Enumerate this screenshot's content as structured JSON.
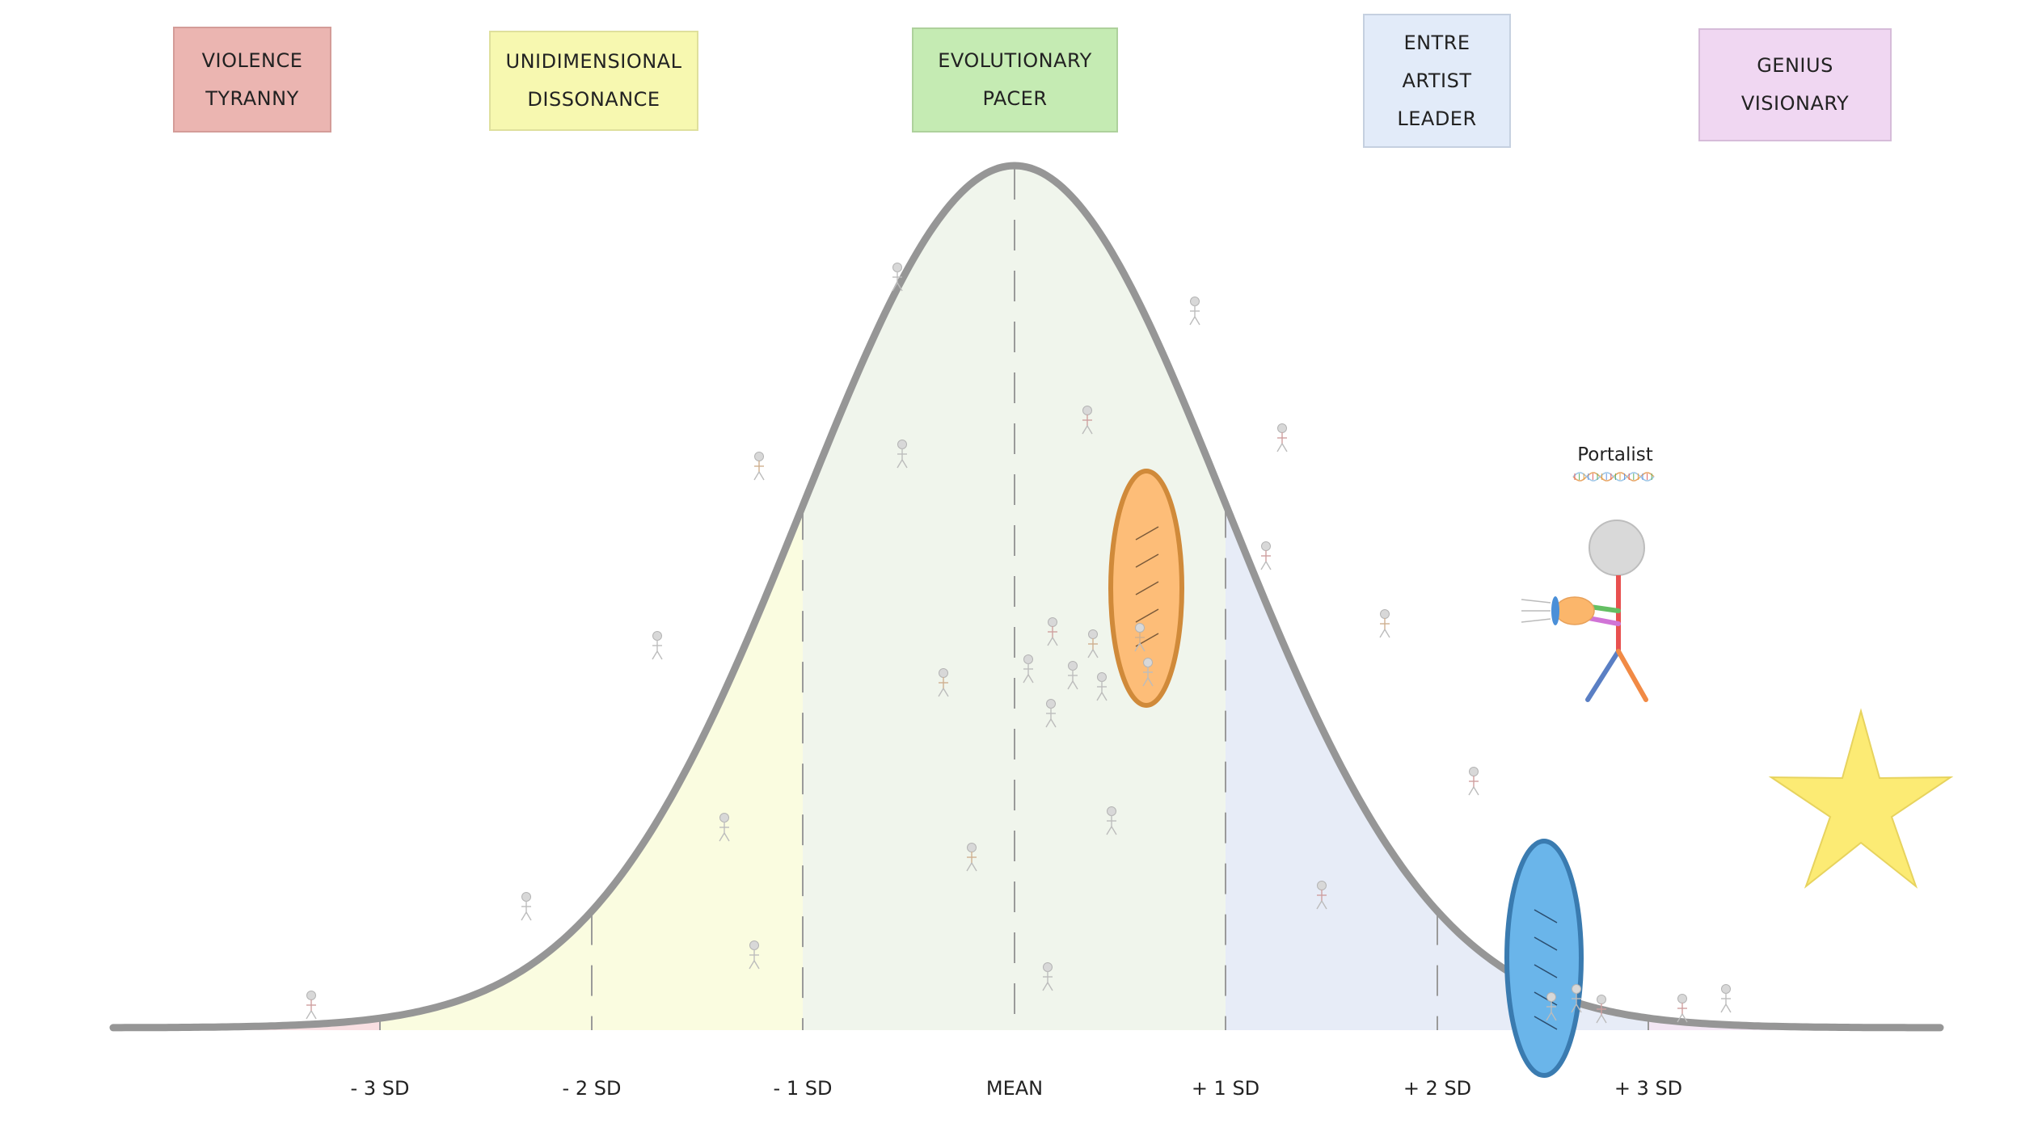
{
  "boxes": [
    {
      "id": "violence",
      "lines": [
        "VIOLENCE",
        "TYRANNY"
      ],
      "bg": "#ebb5b1",
      "border": "#d49c98"
    },
    {
      "id": "unidimensional",
      "lines": [
        "UNIDIMENSIONAL",
        "DISSONANCE"
      ],
      "bg": "#f7f8b0",
      "border": "#dfe09c"
    },
    {
      "id": "evolutionary",
      "lines": [
        "EVOLUTIONARY",
        "PACER"
      ],
      "bg": "#c5ebb3",
      "border": "#aed19c"
    },
    {
      "id": "entre",
      "lines": [
        "ENTRE",
        "ARTIST",
        "LEADER"
      ],
      "bg": "#e2ebf9",
      "border": "#c5d0e0"
    },
    {
      "id": "genius",
      "lines": [
        "GENIUS",
        "VISIONARY"
      ],
      "bg": "#f0d7f2",
      "border": "#d6bcd9"
    }
  ],
  "axis_labels": [
    "- 3 SD",
    "- 2 SD",
    "- 1 SD",
    "MEAN",
    "+ 1 SD",
    "+ 2 SD",
    "+ 3 SD"
  ],
  "portalist": {
    "label": "Portalist"
  },
  "colors": {
    "curve": "#969696",
    "region_violence": "#f9dfe2",
    "region_dissonance": "#fafce0",
    "region_pacer": "#f0f5ec",
    "region_leader": "#e7ecf7",
    "region_visionary": "#f3e6f4",
    "orange_portal": "#fdbd78",
    "blue_portal": "#6ab5ea",
    "star": "#fceb74"
  }
}
